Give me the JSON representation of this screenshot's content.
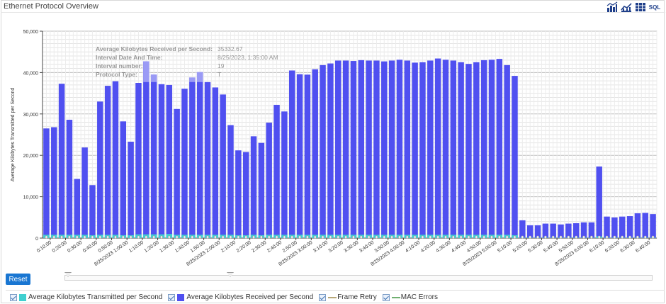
{
  "panel": {
    "title": "Ethernet Protocol Overview"
  },
  "toolbar": [
    {
      "icon": "bar-chart-icon"
    },
    {
      "icon": "line-chart-icon"
    },
    {
      "icon": "table-grid-icon"
    },
    {
      "icon": "sql-icon",
      "label": "SQL"
    }
  ],
  "colors": {
    "transmitted": "#40d0d0",
    "received": "#5050f0",
    "received_highlight": "#9a9af5",
    "frame_retry": "#b8a878",
    "mac_errors": "#70b070"
  },
  "chart_data": {
    "type": "bar",
    "ylabel": "Average Kilobytes Transmitted per Second",
    "ylim": [
      0,
      50000
    ],
    "yticks": [
      "0",
      "10,000",
      "20,000",
      "30,000",
      "40,000",
      "50,000"
    ],
    "grid": true,
    "x_tick_labels": [
      "0:10:00",
      "0:20:00",
      "0:30:00",
      "0:40:00",
      "0:50:00",
      "8/25/2023 1:00:00",
      "1:10:00",
      "1:20:00",
      "1:30:00",
      "1:40:00",
      "1:50:00",
      "8/25/2023 2:00:00",
      "2:10:00",
      "2:20:00",
      "2:30:00",
      "2:40:00",
      "2:50:00",
      "8/25/2023 3:00:00",
      "3:10:00",
      "3:20:00",
      "3:30:00",
      "3:40:00",
      "3:50:00",
      "8/25/2023 4:00:00",
      "4:10:00",
      "4:20:00",
      "4:30:00",
      "4:40:00",
      "4:50:00",
      "8/25/2023 5:00:00",
      "5:10:00",
      "5:20:00",
      "5:30:00",
      "5:40:00",
      "5:50:00",
      "8/25/2023 6:00:00",
      "6:10:00",
      "6:20:00",
      "6:30:00",
      "6:40:00"
    ],
    "series": [
      {
        "name": "Average Kilobytes Received per Second",
        "values": [
          26500,
          26800,
          37300,
          28600,
          14300,
          21900,
          12800,
          33000,
          36800,
          37900,
          28200,
          23300,
          37500,
          42700,
          39500,
          37200,
          37000,
          31200,
          36100,
          38800,
          40100,
          37700,
          36400,
          34700,
          27300,
          21200,
          20800,
          24600,
          23000,
          27900,
          32200,
          30600,
          40500,
          39600,
          39500,
          40800,
          41800,
          42200,
          42900,
          42900,
          42800,
          43000,
          42900,
          42900,
          42700,
          42900,
          43100,
          42900,
          42400,
          42500,
          42900,
          43400,
          43100,
          42900,
          42500,
          42100,
          42500,
          43000,
          43100,
          43300,
          41800,
          39200,
          4300,
          3100,
          3100,
          3500,
          3500,
          3300,
          3500,
          3600,
          3800,
          3800,
          17300,
          5200,
          5000,
          5200,
          5300,
          6000,
          6100,
          5800
        ]
      },
      {
        "name": "Average Kilobytes Transmitted per Second",
        "values": [
          800,
          800,
          800,
          800,
          800,
          800,
          700,
          800,
          800,
          800,
          700,
          700,
          900,
          900,
          900,
          900,
          1000,
          800,
          800,
          800,
          800,
          800,
          800,
          800,
          800,
          700,
          700,
          800,
          700,
          800,
          800,
          800,
          800,
          800,
          800,
          800,
          800,
          800,
          800,
          800,
          800,
          800,
          800,
          800,
          800,
          800,
          800,
          800,
          800,
          800,
          800,
          800,
          800,
          800,
          800,
          800,
          800,
          800,
          800,
          800,
          800,
          700,
          100,
          100,
          100,
          100,
          100,
          100,
          100,
          100,
          100,
          100,
          400,
          100,
          100,
          100,
          100,
          100,
          100,
          100
        ]
      },
      {
        "name": "Frame Retry",
        "values": []
      },
      {
        "name": "MAC Errors",
        "values": []
      }
    ]
  },
  "tooltip": {
    "rows": [
      {
        "label": "Average Kilobytes Received per Second:",
        "value": "35332.67"
      },
      {
        "label": "Interval Date And Time:",
        "value": "8/25/2023, 1:35:00 AM"
      },
      {
        "label": "Interval number:",
        "value": "19"
      },
      {
        "label": "Protocol Type:",
        "value": "T"
      }
    ]
  },
  "controls": {
    "reset_label": "Reset"
  },
  "legend": [
    {
      "label": "Average Kilobytes Transmitted per Second",
      "kind": "box",
      "color": "#40d0d0"
    },
    {
      "label": "Average Kilobytes Received per Second",
      "kind": "box",
      "color": "#5050f0"
    },
    {
      "label": "Frame Retry",
      "kind": "line",
      "color": "#b8a878"
    },
    {
      "label": "MAC Errors",
      "kind": "line",
      "color": "#70b070"
    }
  ]
}
